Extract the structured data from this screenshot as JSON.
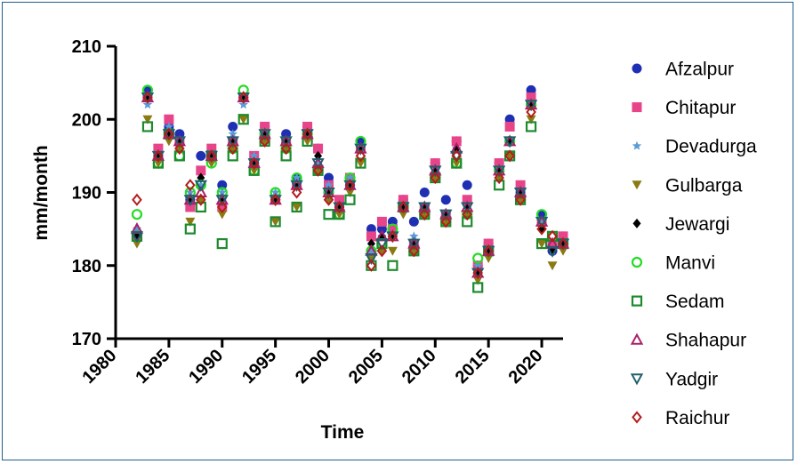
{
  "chart_data": {
    "type": "scatter",
    "title": "",
    "xlabel": "Time",
    "ylabel": "mm/month",
    "xlim": [
      1980,
      2022
    ],
    "ylim": [
      170,
      210
    ],
    "xticks": [
      1980,
      1985,
      1990,
      1995,
      2000,
      2005,
      2010,
      2015,
      2020
    ],
    "yticks": [
      170,
      180,
      190,
      200,
      210
    ],
    "grid": false,
    "legend_position": "right",
    "x": [
      1982,
      1983,
      1984,
      1985,
      1986,
      1987,
      1988,
      1989,
      1990,
      1991,
      1992,
      1993,
      1994,
      1995,
      1996,
      1997,
      1998,
      1999,
      2000,
      2001,
      2002,
      2003,
      2004,
      2005,
      2006,
      2007,
      2008,
      2009,
      2010,
      2011,
      2012,
      2013,
      2014,
      2015,
      2016,
      2017,
      2018,
      2019,
      2020,
      2021,
      2022
    ],
    "series": [
      {
        "name": "Afzalpur",
        "marker": "circle",
        "color": "#1f2fb4",
        "values": [
          184,
          204,
          195,
          199,
          198,
          189,
          195,
          195,
          191,
          199,
          203,
          194,
          199,
          189,
          198,
          192,
          199,
          196,
          192,
          188,
          191,
          197,
          185,
          185,
          186,
          189,
          186,
          190,
          194,
          189,
          197,
          191,
          180,
          183,
          194,
          200,
          190,
          204,
          187,
          182,
          184
        ]
      },
      {
        "name": "Chitapur",
        "marker": "square",
        "color": "#e8448a",
        "values": [
          184,
          203,
          196,
          200,
          197,
          188,
          193,
          196,
          188,
          197,
          203,
          195,
          199,
          189,
          197,
          191,
          199,
          196,
          191,
          189,
          192,
          196,
          184,
          186,
          185,
          189,
          183,
          188,
          194,
          187,
          197,
          189,
          180,
          183,
          194,
          199,
          191,
          203,
          186,
          183,
          184
        ]
      },
      {
        "name": "Devadurga",
        "marker": "star",
        "color": "#5b9bd5",
        "values": [
          185,
          202,
          195,
          199,
          197,
          190,
          191,
          195,
          190,
          198,
          202,
          195,
          198,
          190,
          197,
          192,
          198,
          194,
          191,
          188,
          192,
          196,
          182,
          184,
          184,
          188,
          184,
          188,
          193,
          187,
          196,
          188,
          180,
          182,
          193,
          197,
          190,
          202,
          186,
          182,
          183
        ]
      },
      {
        "name": "Gulbarga",
        "marker": "tri-down",
        "color": "#8b7a12",
        "values": [
          183,
          200,
          194,
          197,
          196,
          186,
          189,
          194,
          187,
          196,
          200,
          193,
          197,
          186,
          196,
          188,
          197,
          193,
          189,
          187,
          190,
          194,
          181,
          182,
          182,
          187,
          182,
          187,
          192,
          186,
          194,
          187,
          178,
          181,
          192,
          195,
          189,
          200,
          183,
          180,
          182
        ]
      },
      {
        "name": "Jewargi",
        "marker": "diamond",
        "color": "#000000",
        "values": [
          184,
          203,
          195,
          198,
          197,
          189,
          192,
          195,
          189,
          197,
          203,
          194,
          198,
          189,
          197,
          191,
          198,
          195,
          190,
          188,
          191,
          196,
          183,
          184,
          184,
          188,
          183,
          188,
          193,
          187,
          196,
          188,
          179,
          182,
          193,
          197,
          190,
          202,
          185,
          182,
          183
        ]
      },
      {
        "name": "Manvi",
        "marker": "circle-open",
        "color": "#22dd22",
        "values": [
          187,
          204,
          194,
          198,
          195,
          190,
          191,
          194,
          190,
          196,
          204,
          193,
          198,
          190,
          196,
          192,
          198,
          193,
          190,
          187,
          192,
          197,
          182,
          183,
          185,
          188,
          182,
          187,
          192,
          186,
          194,
          187,
          181,
          182,
          193,
          197,
          189,
          202,
          187,
          184,
          183
        ]
      },
      {
        "name": "Sedam",
        "marker": "square-open",
        "color": "#1d8a2e",
        "values": [
          184,
          199,
          194,
          198,
          195,
          185,
          188,
          195,
          183,
          195,
          200,
          193,
          197,
          186,
          195,
          188,
          197,
          193,
          187,
          187,
          189,
          194,
          180,
          183,
          180,
          188,
          182,
          187,
          192,
          186,
          194,
          186,
          177,
          182,
          191,
          195,
          189,
          199,
          183,
          184,
          183
        ]
      },
      {
        "name": "Shahapur",
        "marker": "tri-up-open",
        "color": "#a8206a",
        "values": [
          185,
          203,
          195,
          198,
          197,
          189,
          190,
          195,
          189,
          197,
          203,
          194,
          198,
          189,
          197,
          191,
          198,
          194,
          190,
          188,
          191,
          196,
          182,
          184,
          184,
          188,
          183,
          188,
          193,
          187,
          196,
          188,
          179,
          182,
          193,
          197,
          190,
          202,
          186,
          183,
          183
        ]
      },
      {
        "name": "Yadgir",
        "marker": "tri-down-open",
        "color": "#1f5f6e",
        "values": [
          184,
          203,
          195,
          198,
          197,
          189,
          191,
          195,
          189,
          197,
          203,
          194,
          198,
          189,
          197,
          191,
          198,
          194,
          190,
          188,
          191,
          196,
          181,
          183,
          184,
          188,
          183,
          188,
          193,
          187,
          195,
          188,
          179,
          182,
          193,
          197,
          190,
          202,
          186,
          182,
          183
        ]
      },
      {
        "name": "Raichur",
        "marker": "diamond-open",
        "color": "#b21d1d",
        "values": [
          189,
          203,
          195,
          198,
          196,
          191,
          189,
          195,
          188,
          196,
          203,
          194,
          197,
          189,
          196,
          190,
          198,
          193,
          189,
          188,
          191,
          195,
          180,
          182,
          184,
          188,
          182,
          187,
          192,
          186,
          195,
          187,
          179,
          182,
          192,
          195,
          189,
          201,
          185,
          184,
          183
        ]
      }
    ]
  }
}
